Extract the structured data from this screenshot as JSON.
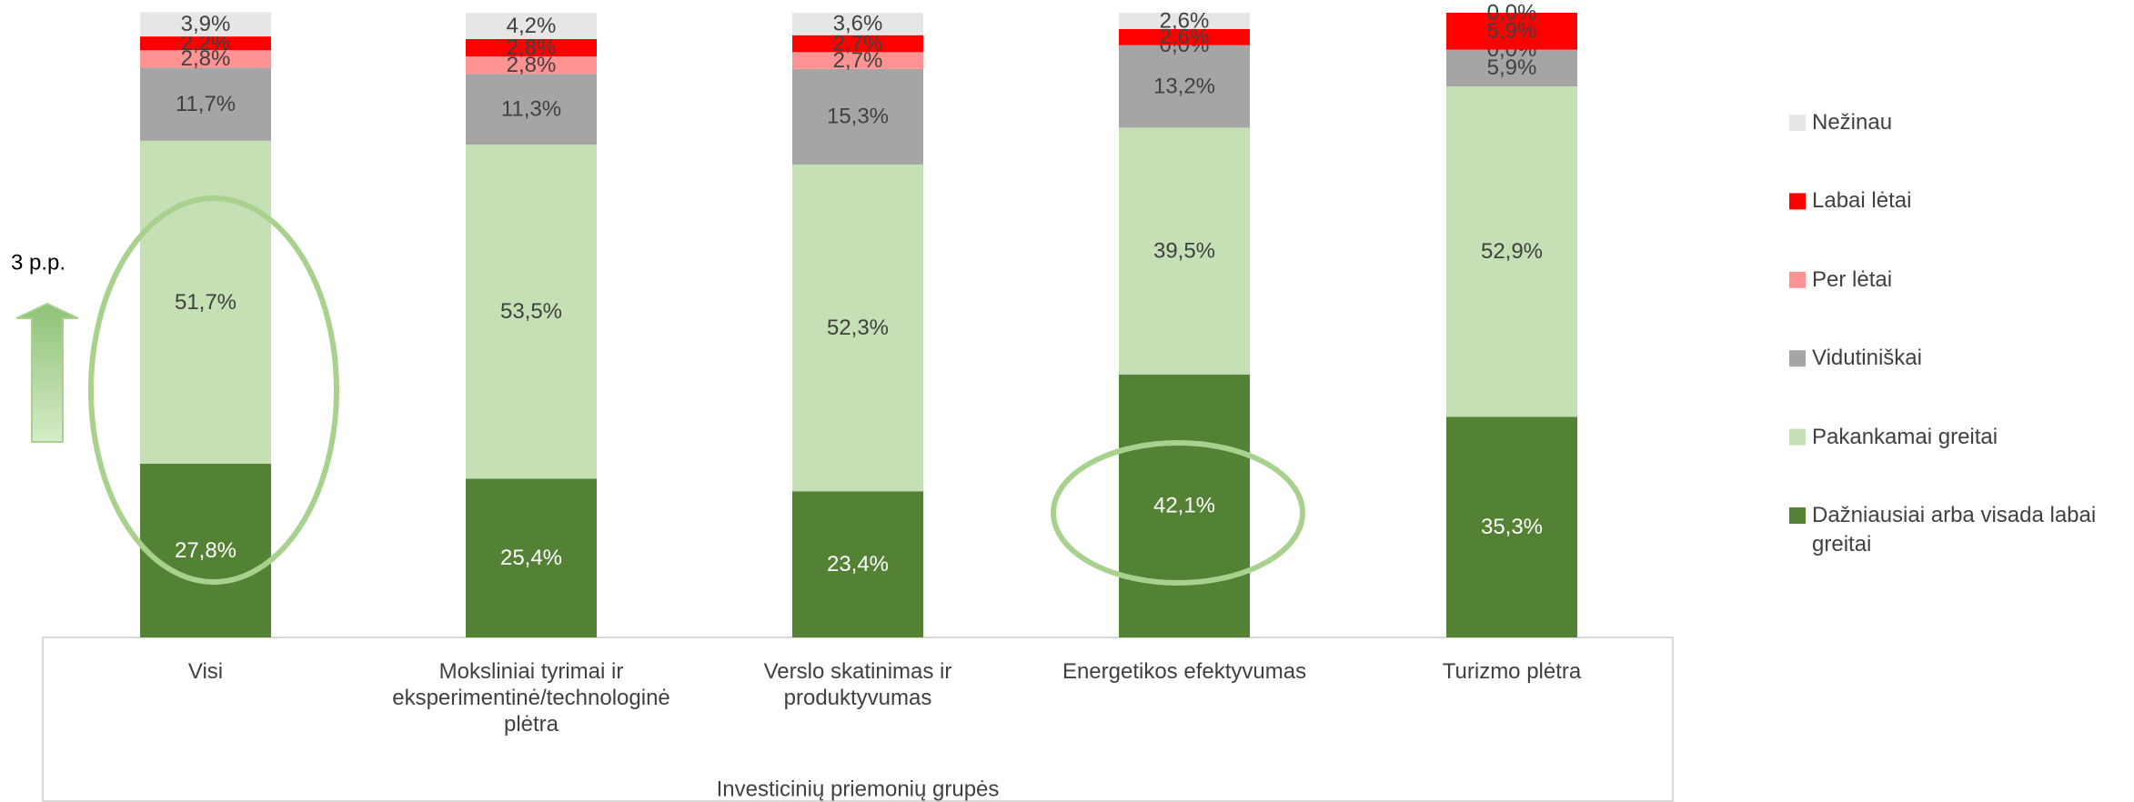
{
  "chart_data": {
    "type": "stacked_bar",
    "annotation": "3 p.p.",
    "x_label": "Investicinių priemonių grupės",
    "categories": [
      "Visi",
      "Moksliniai tyrimai ir eksperimentinė/technologinė plėtra",
      "Verslo skatinimas ir produktyvumas",
      "Energetikos efektyvumas",
      "Turizmo plėtra"
    ],
    "ylim": [
      0,
      100
    ],
    "series": [
      {
        "name": "Dažniausiai arba visada labai greitai",
        "color": "#548235",
        "values": [
          27.8,
          25.4,
          23.4,
          42.1,
          35.3
        ],
        "value_labels": [
          "27,8%",
          "25,4%",
          "23,4%",
          "42,1%",
          "35,3%"
        ]
      },
      {
        "name": "Pakankamai greitai",
        "color": "#c5e0b4",
        "values": [
          51.7,
          53.5,
          52.3,
          39.5,
          52.9
        ],
        "value_labels": [
          "51,7%",
          "53,5%",
          "52,3%",
          "39,5%",
          "52,9%"
        ]
      },
      {
        "name": "Vidutiniškai",
        "color": "#a5a5a5",
        "values": [
          11.7,
          11.3,
          15.3,
          13.2,
          5.9
        ],
        "value_labels": [
          "11,7%",
          "11,3%",
          "15,3%",
          "13,2%",
          "5,9%"
        ]
      },
      {
        "name": "Per lėtai",
        "color": "#ff9393",
        "values": [
          2.8,
          2.8,
          2.7,
          0.0,
          0.0
        ],
        "value_labels": [
          "2,8%",
          "2,8%",
          "2,7%",
          "0,0%",
          "0,0%"
        ]
      },
      {
        "name": "Labai lėtai",
        "color": "#ff0000",
        "values": [
          2.2,
          2.8,
          2.7,
          2.6,
          5.9
        ],
        "value_labels": [
          "2,2%",
          "2,8%",
          "2,7%",
          "2,6%",
          "5,9%"
        ]
      },
      {
        "name": "Nežinau",
        "color": "#e7e6e6",
        "values": [
          3.9,
          4.2,
          3.6,
          2.6,
          0.0
        ],
        "value_labels": [
          "3,9%",
          "4,2%",
          "3,6%",
          "2,6%",
          "0,0%"
        ]
      }
    ]
  }
}
